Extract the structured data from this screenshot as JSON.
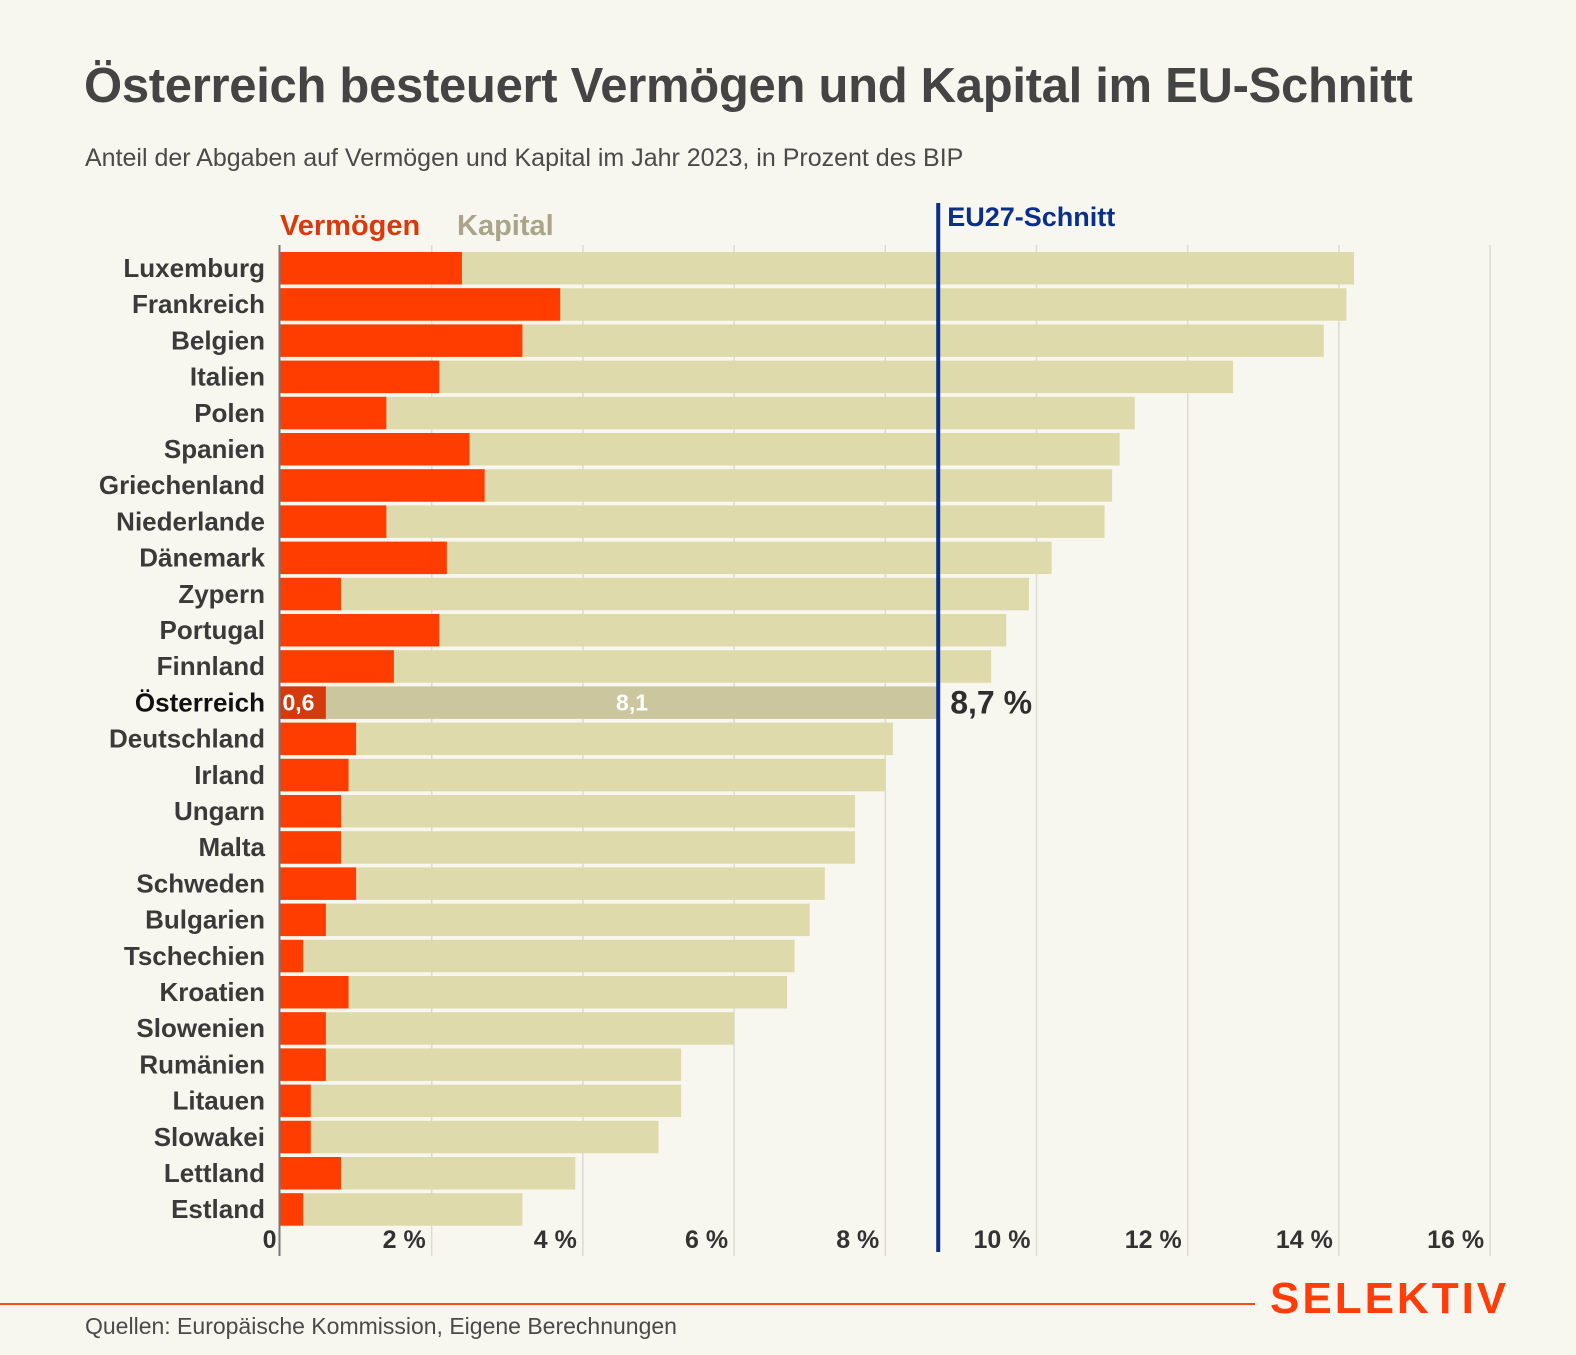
{
  "header": {
    "title": "Österreich besteuert Vermögen und Kapital im EU-Schnitt",
    "subtitle": "Anteil der Abgaben auf Vermögen und Kapital im Jahr 2023, in Prozent des BIP"
  },
  "footer": {
    "source": "Quellen: Europäische Kommission, Eigene Berechnungen",
    "brand": "SELEKTIV"
  },
  "colors": {
    "vermoegen": "#ff3d00",
    "kapital": "#dfdaab",
    "vermoegen_highlight": "#d43a0c",
    "kapital_highlight": "#cbc69e",
    "legend_vermoegen": "#d93a0b",
    "legend_kapital": "#a9a48a",
    "eu_line": "#0a2e8c",
    "brand": "#ff3d0a"
  },
  "chart_data": {
    "type": "bar",
    "orientation": "horizontal",
    "stacked": true,
    "title": "Österreich besteuert Vermögen und Kapital im EU-Schnitt",
    "subtitle": "Anteil der Abgaben auf Vermögen und Kapital im Jahr 2023, in Prozent des BIP",
    "xlabel": "",
    "ylabel": "",
    "xlim": [
      0,
      16
    ],
    "x_ticks": [
      0,
      2,
      4,
      6,
      8,
      10,
      12,
      14,
      16
    ],
    "x_tick_labels": [
      "0",
      "2 %",
      "4 %",
      "6 %",
      "8 %",
      "10 %",
      "12 %",
      "14 %",
      "16 %"
    ],
    "grid": true,
    "legend": [
      "Vermögen",
      "Kapital"
    ],
    "legend_position": "top-left",
    "categories": [
      "Luxemburg",
      "Frankreich",
      "Belgien",
      "Italien",
      "Polen",
      "Spanien",
      "Griechenland",
      "Niederlande",
      "Dänemark",
      "Zypern",
      "Portugal",
      "Finnland",
      "Österreich",
      "Deutschland",
      "Irland",
      "Ungarn",
      "Malta",
      "Schweden",
      "Bulgarien",
      "Tschechien",
      "Kroatien",
      "Slowenien",
      "Rumänien",
      "Litauen",
      "Slowakei",
      "Lettland",
      "Estland"
    ],
    "series": [
      {
        "name": "Vermögen",
        "values": [
          2.4,
          3.7,
          3.2,
          2.1,
          1.4,
          2.5,
          2.7,
          1.4,
          2.2,
          0.8,
          2.1,
          1.5,
          0.6,
          1.0,
          0.9,
          0.8,
          0.8,
          1.0,
          0.6,
          0.3,
          0.9,
          0.6,
          0.6,
          0.4,
          0.4,
          0.8,
          0.3
        ]
      },
      {
        "name": "Kapital",
        "values": [
          11.8,
          10.4,
          10.6,
          10.5,
          9.9,
          8.6,
          8.3,
          9.5,
          8.0,
          9.1,
          7.5,
          7.9,
          8.1,
          7.1,
          7.1,
          6.8,
          6.8,
          6.2,
          6.4,
          6.5,
          5.8,
          5.4,
          4.7,
          4.9,
          4.6,
          3.1,
          2.9
        ]
      }
    ],
    "totals": [
      14.2,
      14.1,
      13.8,
      12.6,
      11.3,
      11.1,
      11.0,
      10.9,
      10.2,
      9.9,
      9.6,
      9.4,
      8.7,
      8.1,
      8.0,
      7.6,
      7.6,
      7.2,
      7.0,
      6.8,
      6.7,
      6.0,
      5.3,
      5.3,
      5.0,
      3.9,
      3.2
    ],
    "highlight": {
      "category": "Österreich",
      "vermoegen_label": "0,6",
      "kapital_label": "8,1",
      "total_label": "8,7 %"
    },
    "reference_line": {
      "label": "EU27-Schnitt",
      "value": 8.7
    }
  }
}
